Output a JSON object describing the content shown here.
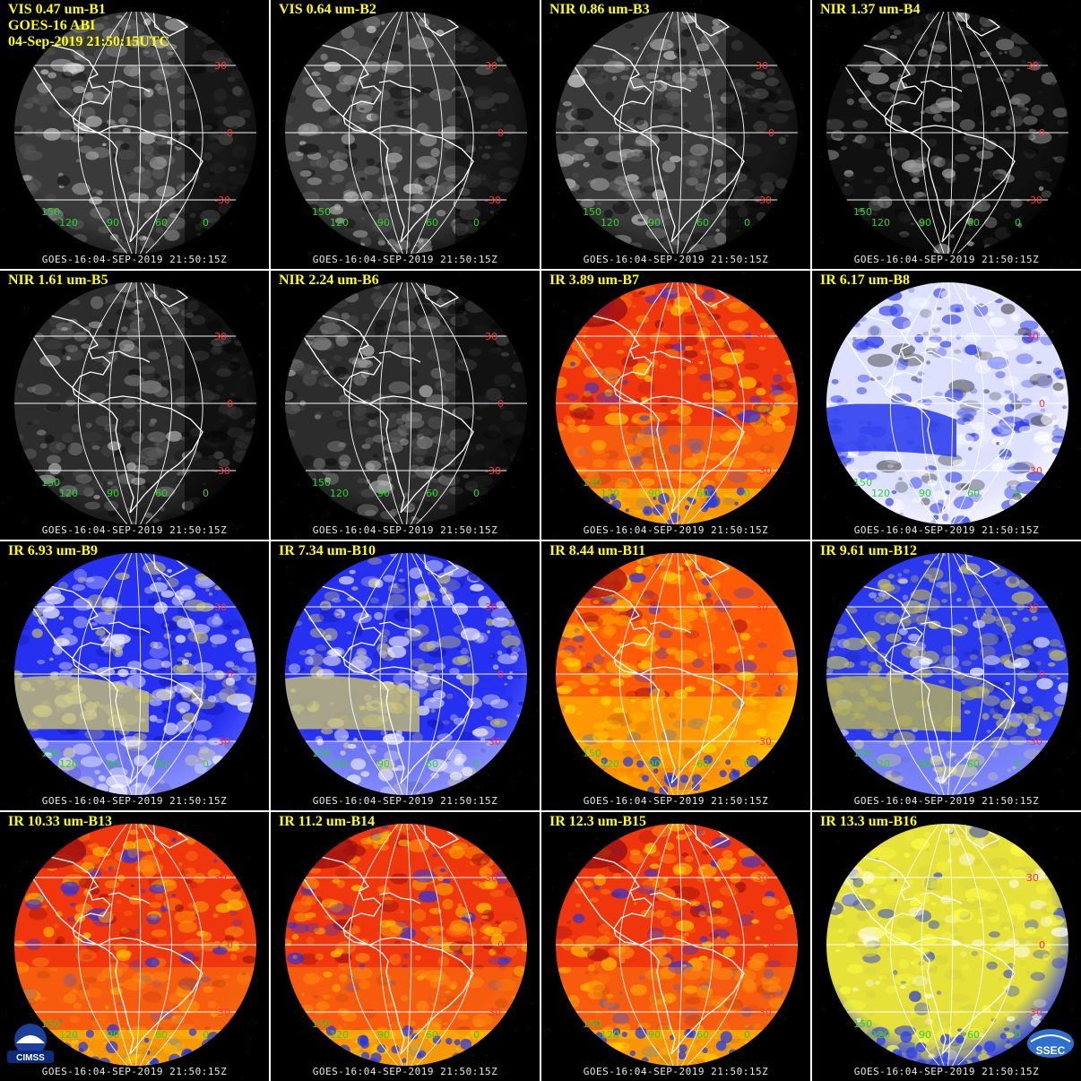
{
  "header": {
    "satellite": "GOES-16 ABI",
    "datetime": "04-Sep-2019 21:50:15UTC"
  },
  "timestamp": "GOES-16:04-SEP-2019 21:50:15Z",
  "lat_labels": [
    "30",
    "0",
    "-30"
  ],
  "lon_labels": [
    "150",
    "120",
    "90",
    "60",
    "0"
  ],
  "panels": [
    {
      "title": "VIS 0.47 um-B1",
      "palette": "vis"
    },
    {
      "title": "VIS 0.64 um-B2",
      "palette": "vis"
    },
    {
      "title": "NIR 0.86 um-B3",
      "palette": "vis"
    },
    {
      "title": "NIR 1.37 um-B4",
      "palette": "dark"
    },
    {
      "title": "NIR 1.61 um-B5",
      "palette": "nir"
    },
    {
      "title": "NIR 2.24 um-B6",
      "palette": "nir"
    },
    {
      "title": "IR 3.89 um-B7",
      "palette": "ir"
    },
    {
      "title": "IR 6.17 um-B8",
      "palette": "wv_white"
    },
    {
      "title": "IR 6.93 um-B9",
      "palette": "wv_blue"
    },
    {
      "title": "IR 7.34 um-B10",
      "palette": "wv_blue"
    },
    {
      "title": "IR 8.44 um-B11",
      "palette": "ir_yellow"
    },
    {
      "title": "IR 9.61 um-B12",
      "palette": "ozone"
    },
    {
      "title": "IR 10.33 um-B13",
      "palette": "ir"
    },
    {
      "title": "IR 11.2 um-B14",
      "palette": "ir"
    },
    {
      "title": "IR 12.3 um-B15",
      "palette": "ir"
    },
    {
      "title": "IR 13.3 um-B16",
      "palette": "co2"
    }
  ],
  "logos": {
    "left": "CIMSS",
    "right": "SSEC"
  },
  "colors": {
    "title_yellow": "#ffff00",
    "grid_white": "#ffffff",
    "lat_label_red": "#ff3030",
    "lon_label_green": "#30d030"
  }
}
